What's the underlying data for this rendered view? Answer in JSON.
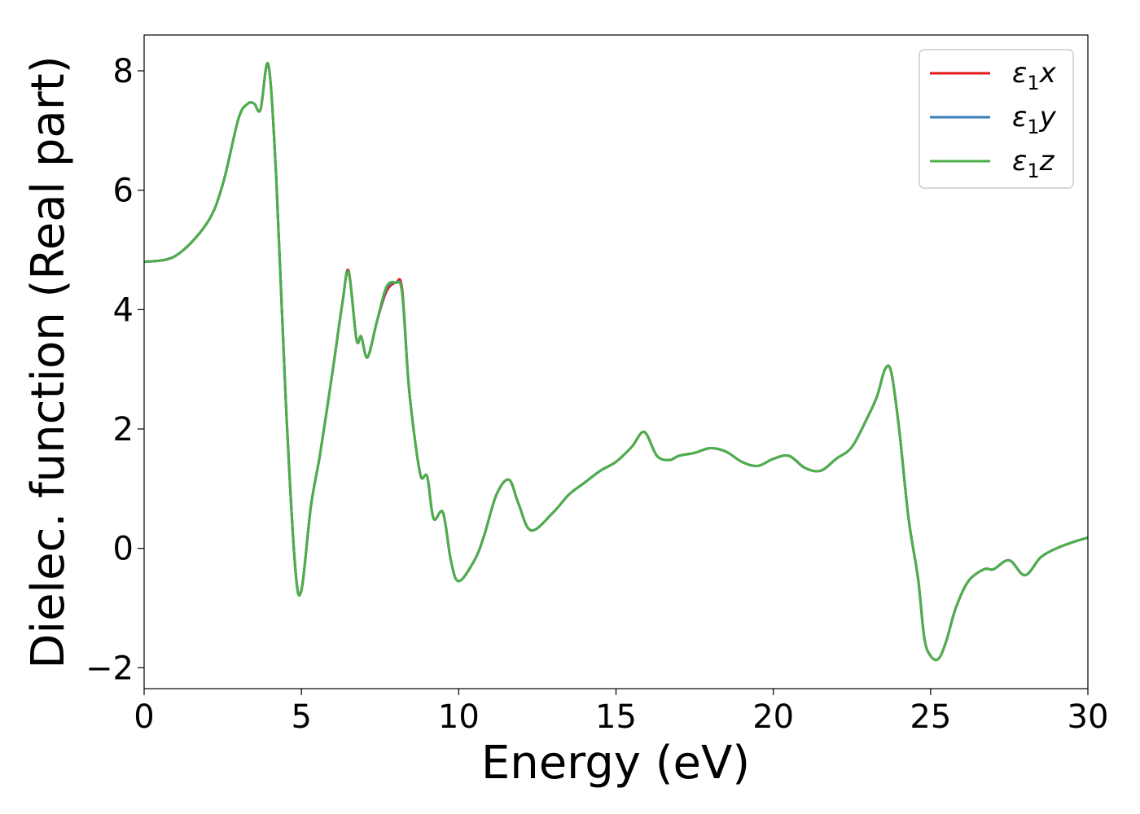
{
  "chart_data": {
    "type": "line",
    "title": "",
    "xlabel": "Energy (eV)",
    "ylabel": "Dielec. function (Real part)",
    "xlim": [
      0,
      30
    ],
    "ylim": [
      -2.35,
      8.6
    ],
    "xticks": [
      0,
      5,
      10,
      15,
      20,
      25,
      30
    ],
    "xtick_labels": [
      "0",
      "5",
      "10",
      "15",
      "20",
      "25",
      "30"
    ],
    "yticks": [
      -2,
      0,
      2,
      4,
      6,
      8
    ],
    "ytick_labels": [
      "−2",
      "0",
      "2",
      "4",
      "6",
      "8"
    ],
    "grid": false,
    "legend_position": "top-right",
    "series": [
      {
        "name": "ε₁x",
        "legend_sym": "ε",
        "legend_sub": "1",
        "legend_var": "x",
        "color": "#e41a1c",
        "x": [
          0,
          1,
          2,
          2.5,
          3,
          3.3,
          3.5,
          3.7,
          3.95,
          4.2,
          4.5,
          4.8,
          5.0,
          5.3,
          5.6,
          6.0,
          6.3,
          6.5,
          6.75,
          6.9,
          7.1,
          7.4,
          7.7,
          8.0,
          8.2,
          8.4,
          8.6,
          8.8,
          9.0,
          9.2,
          9.5,
          9.75,
          10.0,
          10.5,
          10.8,
          11.2,
          11.6,
          11.9,
          12.3,
          13.0,
          13.5,
          14.0,
          14.5,
          15.0,
          15.5,
          15.9,
          16.3,
          16.7,
          17.0,
          17.5,
          18.0,
          18.5,
          19.0,
          19.5,
          20.0,
          20.5,
          21.0,
          21.5,
          22.0,
          22.5,
          23.0,
          23.3,
          23.55,
          23.75,
          24.0,
          24.3,
          24.6,
          24.8,
          25.0,
          25.25,
          25.5,
          25.8,
          26.2,
          26.7,
          27.0,
          27.5,
          28.0,
          28.5,
          29.0,
          29.5,
          30.0
        ],
        "y": [
          4.8,
          4.9,
          5.45,
          6.1,
          7.2,
          7.45,
          7.45,
          7.35,
          8.1,
          6.2,
          2.5,
          -0.3,
          -0.7,
          0.7,
          1.6,
          3.0,
          4.1,
          4.65,
          3.5,
          3.55,
          3.2,
          3.8,
          4.3,
          4.45,
          4.35,
          2.8,
          1.85,
          1.2,
          1.2,
          0.5,
          0.6,
          -0.2,
          -0.55,
          -0.2,
          0.2,
          0.9,
          1.15,
          0.75,
          0.3,
          0.6,
          0.9,
          1.1,
          1.3,
          1.45,
          1.7,
          1.95,
          1.55,
          1.48,
          1.55,
          1.6,
          1.68,
          1.62,
          1.45,
          1.38,
          1.5,
          1.55,
          1.35,
          1.3,
          1.5,
          1.7,
          2.2,
          2.55,
          3.0,
          2.95,
          2.0,
          0.5,
          -0.5,
          -1.5,
          -1.8,
          -1.85,
          -1.55,
          -1.0,
          -0.55,
          -0.35,
          -0.35,
          -0.2,
          -0.45,
          -0.15,
          0.0,
          0.1,
          0.18
        ]
      },
      {
        "name": "ε₁y",
        "legend_sym": "ε",
        "legend_sub": "1",
        "legend_var": "y",
        "color": "#377eb8",
        "x": [
          0,
          1,
          2,
          2.5,
          3,
          3.3,
          3.5,
          3.7,
          3.95,
          4.2,
          4.5,
          4.8,
          5.0,
          5.3,
          5.6,
          6.0,
          6.3,
          6.5,
          6.75,
          6.9,
          7.1,
          7.4,
          7.7,
          8.0,
          8.2,
          8.4,
          8.6,
          8.8,
          9.0,
          9.2,
          9.5,
          9.75,
          10.0,
          10.5,
          10.8,
          11.2,
          11.6,
          11.9,
          12.3,
          13.0,
          13.5,
          14.0,
          14.5,
          15.0,
          15.5,
          15.9,
          16.3,
          16.7,
          17.0,
          17.5,
          18.0,
          18.5,
          19.0,
          19.5,
          20.0,
          20.5,
          21.0,
          21.5,
          22.0,
          22.5,
          23.0,
          23.3,
          23.55,
          23.75,
          24.0,
          24.3,
          24.6,
          24.8,
          25.0,
          25.25,
          25.5,
          25.8,
          26.2,
          26.7,
          27.0,
          27.5,
          28.0,
          28.5,
          29.0,
          29.5,
          30.0
        ],
        "y": [
          4.8,
          4.9,
          5.45,
          6.1,
          7.2,
          7.45,
          7.45,
          7.35,
          8.1,
          6.2,
          2.5,
          -0.3,
          -0.7,
          0.7,
          1.6,
          3.0,
          4.1,
          4.63,
          3.5,
          3.55,
          3.2,
          3.8,
          4.35,
          4.45,
          4.3,
          2.8,
          1.85,
          1.2,
          1.2,
          0.5,
          0.6,
          -0.2,
          -0.55,
          -0.2,
          0.2,
          0.9,
          1.15,
          0.75,
          0.3,
          0.6,
          0.9,
          1.1,
          1.3,
          1.45,
          1.7,
          1.95,
          1.55,
          1.48,
          1.55,
          1.6,
          1.68,
          1.62,
          1.45,
          1.38,
          1.5,
          1.55,
          1.35,
          1.3,
          1.5,
          1.7,
          2.2,
          2.55,
          3.0,
          2.95,
          2.0,
          0.5,
          -0.5,
          -1.5,
          -1.8,
          -1.85,
          -1.55,
          -1.0,
          -0.55,
          -0.35,
          -0.35,
          -0.2,
          -0.45,
          -0.15,
          0.0,
          0.1,
          0.18
        ]
      },
      {
        "name": "ε₁z",
        "legend_sym": "ε",
        "legend_sub": "1",
        "legend_var": "z",
        "color": "#4daf4a",
        "x": [
          0,
          1,
          2,
          2.5,
          3,
          3.3,
          3.5,
          3.7,
          3.95,
          4.2,
          4.5,
          4.8,
          5.0,
          5.3,
          5.6,
          6.0,
          6.3,
          6.5,
          6.75,
          6.9,
          7.1,
          7.4,
          7.7,
          8.0,
          8.2,
          8.4,
          8.6,
          8.8,
          9.0,
          9.2,
          9.5,
          9.75,
          10.0,
          10.5,
          10.8,
          11.2,
          11.6,
          11.9,
          12.3,
          13.0,
          13.5,
          14.0,
          14.5,
          15.0,
          15.5,
          15.9,
          16.3,
          16.7,
          17.0,
          17.5,
          18.0,
          18.5,
          19.0,
          19.5,
          20.0,
          20.5,
          21.0,
          21.5,
          22.0,
          22.5,
          23.0,
          23.3,
          23.55,
          23.75,
          24.0,
          24.3,
          24.6,
          24.8,
          25.0,
          25.25,
          25.5,
          25.8,
          26.2,
          26.7,
          27.0,
          27.5,
          28.0,
          28.5,
          29.0,
          29.5,
          30.0
        ],
        "y": [
          4.8,
          4.9,
          5.45,
          6.1,
          7.2,
          7.45,
          7.45,
          7.35,
          8.1,
          6.2,
          2.5,
          -0.3,
          -0.7,
          0.7,
          1.6,
          3.0,
          4.1,
          4.62,
          3.5,
          3.55,
          3.2,
          3.8,
          4.38,
          4.45,
          4.28,
          2.8,
          1.85,
          1.2,
          1.2,
          0.5,
          0.6,
          -0.2,
          -0.55,
          -0.2,
          0.2,
          0.9,
          1.15,
          0.75,
          0.3,
          0.6,
          0.9,
          1.1,
          1.3,
          1.45,
          1.7,
          1.95,
          1.55,
          1.48,
          1.55,
          1.6,
          1.68,
          1.62,
          1.45,
          1.38,
          1.5,
          1.55,
          1.35,
          1.3,
          1.5,
          1.7,
          2.2,
          2.55,
          3.0,
          2.95,
          2.0,
          0.5,
          -0.5,
          -1.5,
          -1.8,
          -1.85,
          -1.55,
          -1.0,
          -0.55,
          -0.35,
          -0.35,
          -0.2,
          -0.45,
          -0.15,
          0.0,
          0.1,
          0.18
        ]
      }
    ]
  }
}
